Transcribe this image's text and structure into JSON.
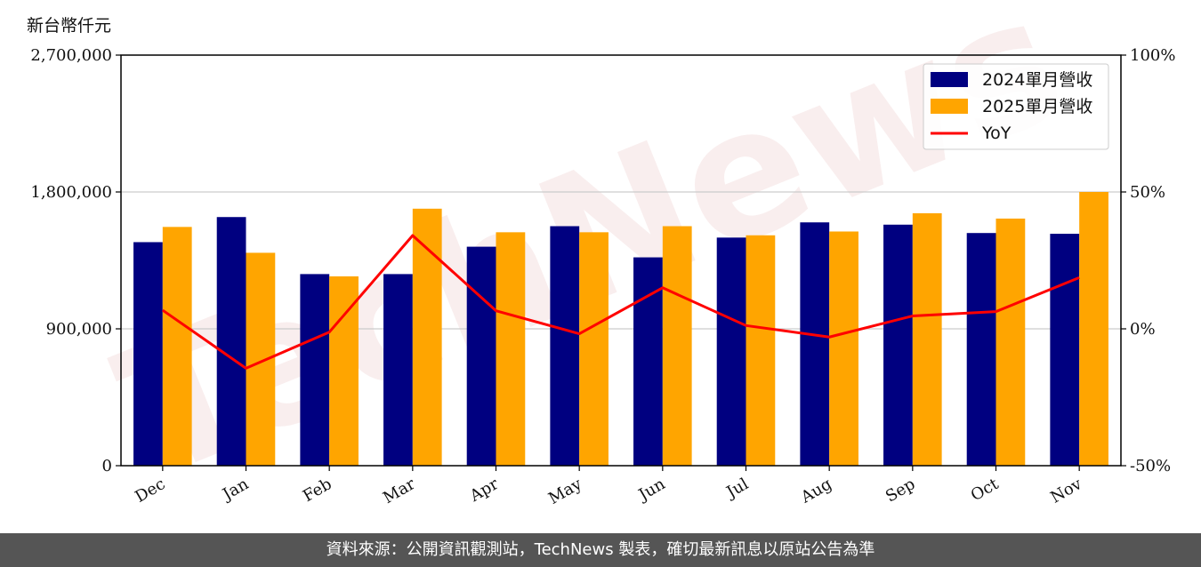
{
  "unit_label": "新台幣仟元",
  "footer_text": "資料來源：公開資訊觀測站，TechNews 製表，確切最新訊息以原站公告為準",
  "watermark_text": "TechNews",
  "chart_data": {
    "type": "bar",
    "categories": [
      "Dec",
      "Jan",
      "Feb",
      "Mar",
      "Apr",
      "May",
      "Jun",
      "Jul",
      "Aug",
      "Sep",
      "Oct",
      "Nov"
    ],
    "series": [
      {
        "name": "2024單月營收",
        "kind": "bar",
        "axis": "left",
        "color": "#000080",
        "values": [
          1470000,
          1635000,
          1260000,
          1260000,
          1440000,
          1575000,
          1370000,
          1500000,
          1600000,
          1585000,
          1530000,
          1525000
        ]
      },
      {
        "name": "2025單月營收",
        "kind": "bar",
        "axis": "left",
        "color": "#FFA500",
        "values": [
          1570000,
          1400000,
          1245000,
          1690000,
          1535000,
          1535000,
          1575000,
          1515000,
          1540000,
          1660000,
          1625000,
          1800000
        ]
      },
      {
        "name": "YoY",
        "kind": "line",
        "axis": "right",
        "color": "#FF0000",
        "values": [
          6.8,
          -14.4,
          -1.2,
          34.1,
          6.6,
          -1.8,
          15.0,
          1.2,
          -3.0,
          4.7,
          6.3,
          18.7
        ]
      }
    ],
    "yaxis_left": {
      "min": 0,
      "max": 2700000,
      "ticks": [
        "0",
        "900,000",
        "1,800,000",
        "2,700,000"
      ],
      "tick_values": [
        0,
        900000,
        1800000,
        2700000
      ]
    },
    "yaxis_right": {
      "min": -50,
      "max": 100,
      "ticks": [
        "-50%",
        "0%",
        "50%",
        "100%"
      ],
      "tick_values": [
        -50,
        0,
        50,
        100
      ]
    },
    "grid": "horizontal",
    "legend_position": "top-right"
  }
}
